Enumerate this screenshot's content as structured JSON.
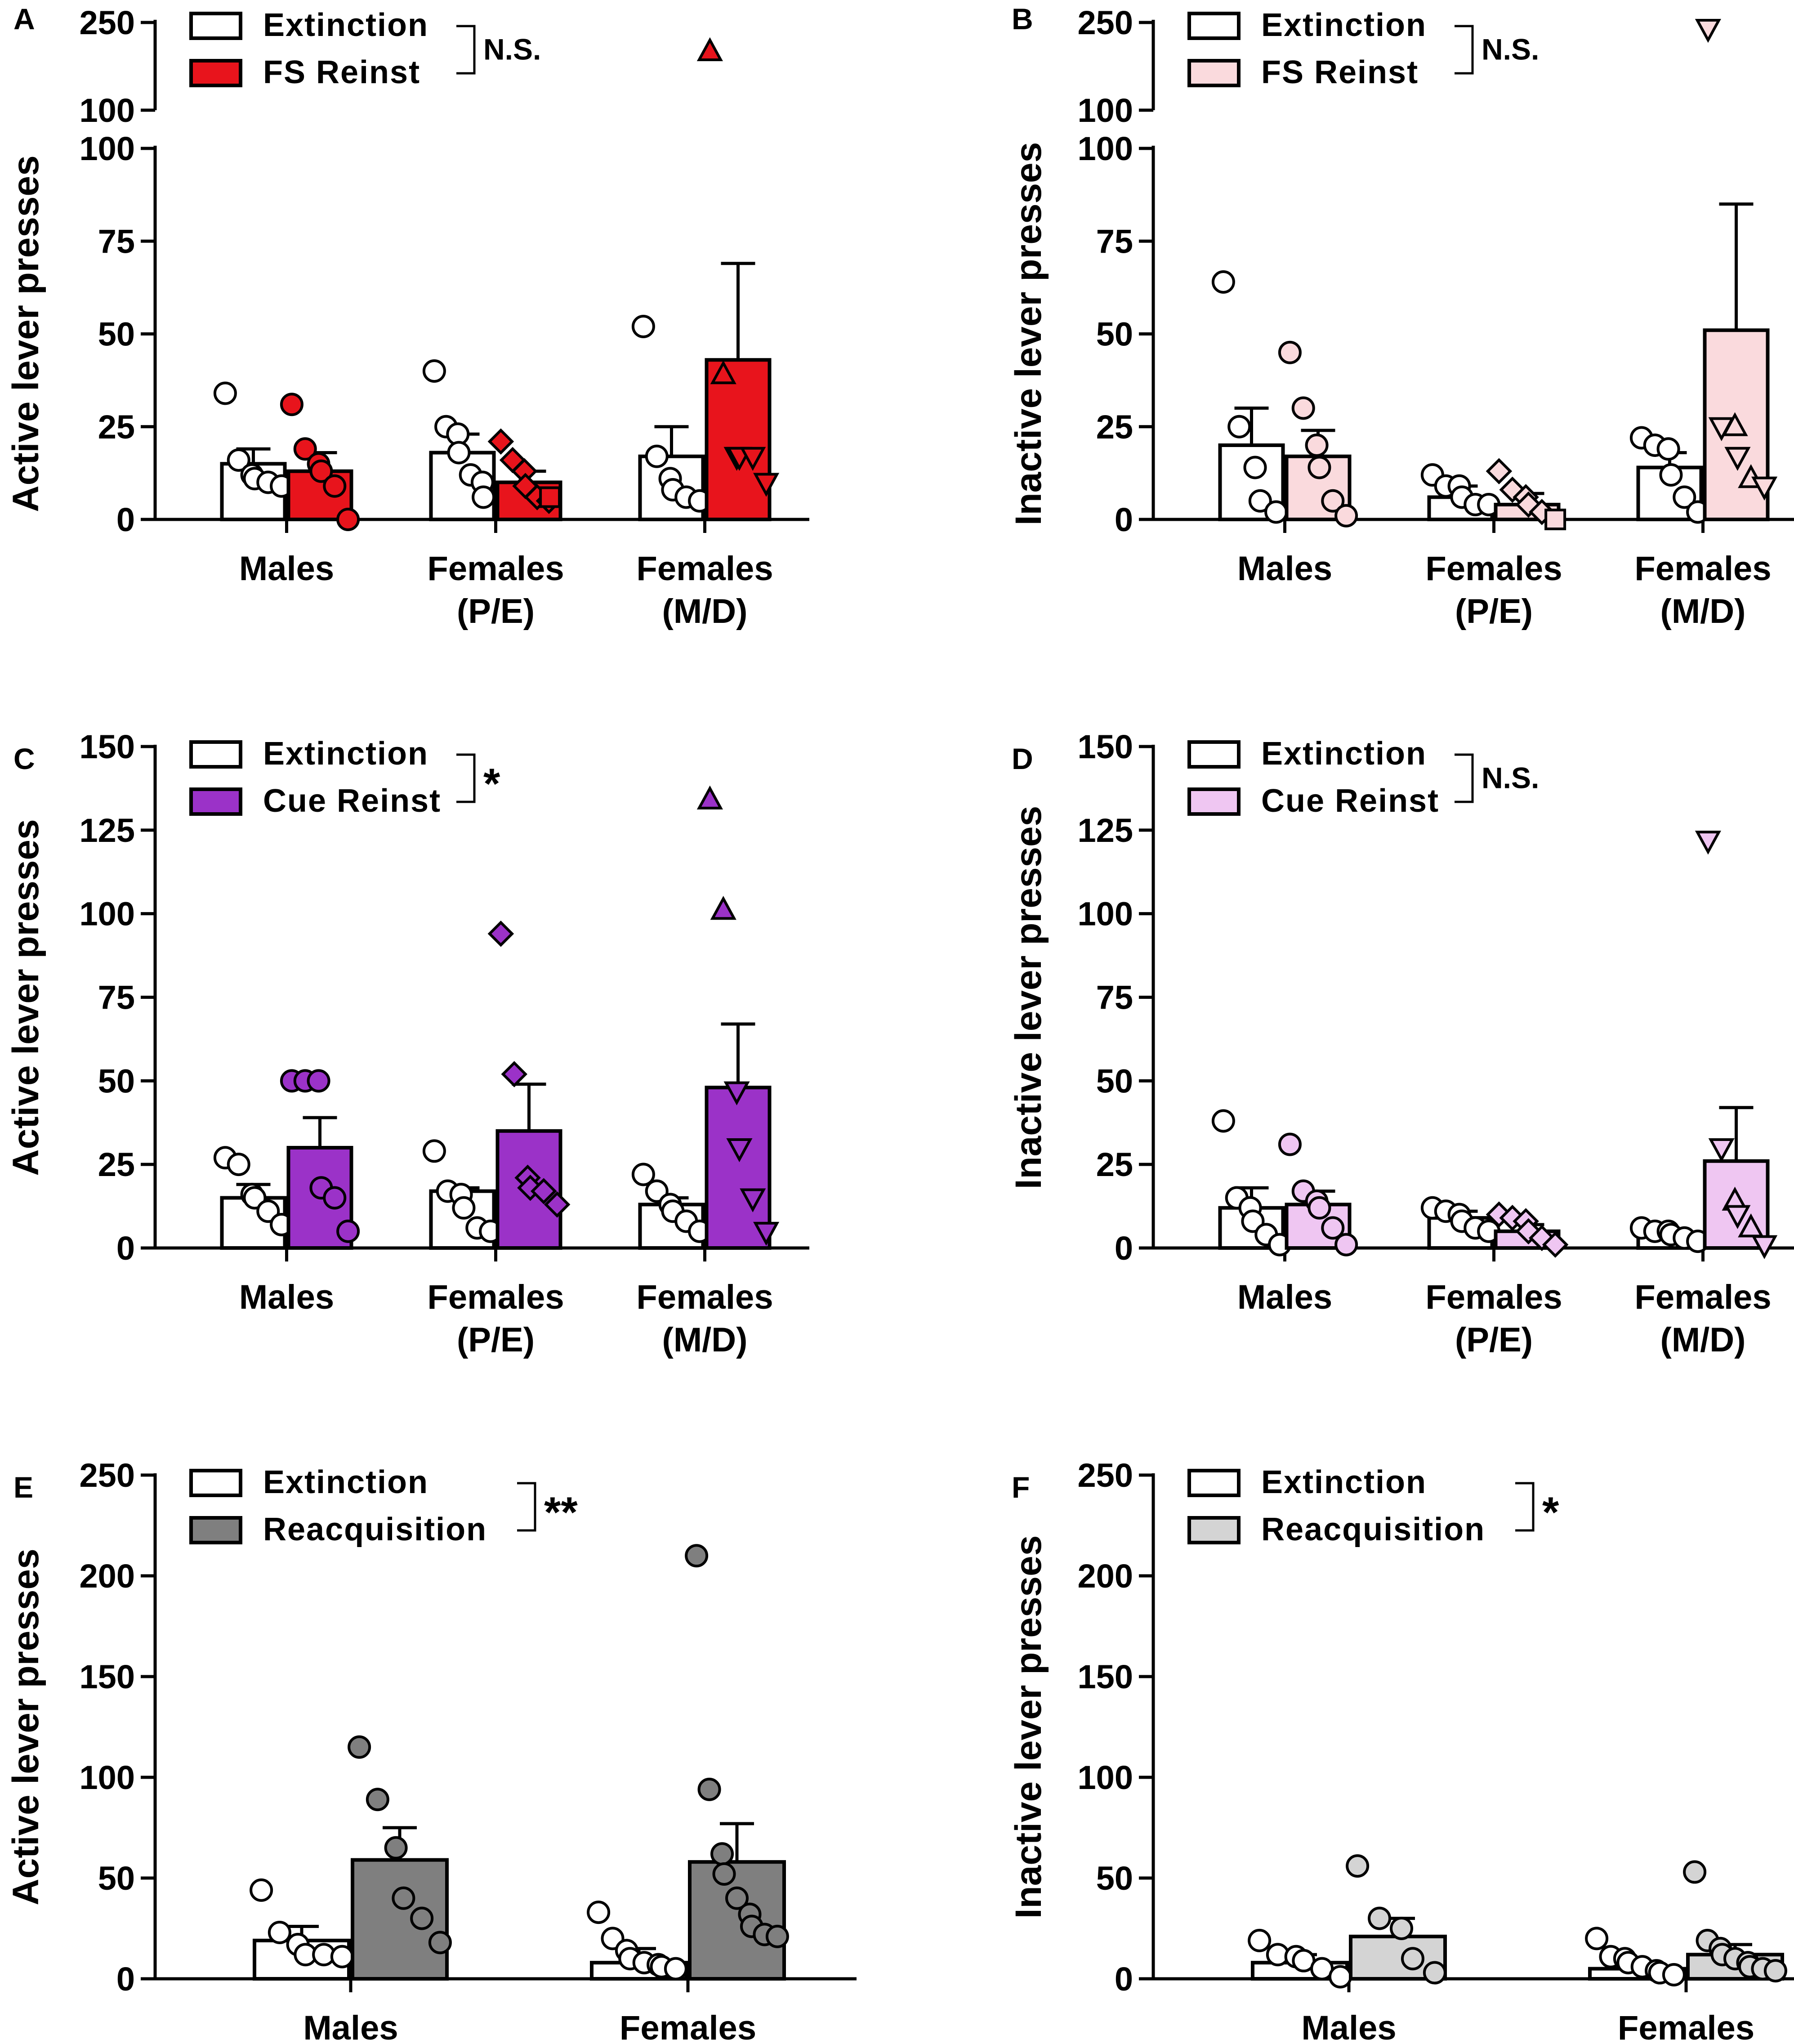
{
  "colors": {
    "fs_active": "#e8141c",
    "fs_inactive": "#fadadd",
    "cue_active": "#9b32c8",
    "cue_inactive": "#efc6f2",
    "reacq_active": "#7f7f7f",
    "reacq_inactive": "#d4d4d4",
    "extinction": "#ffffff",
    "stroke": "#000000"
  },
  "chart_data": [
    {
      "panel": "A",
      "type": "bar",
      "ylabel": "Active lever presses",
      "categories": [
        "Males",
        "Females\n(P/E)",
        "Females\n(M/D)"
      ],
      "yticks_lower": [
        0,
        25,
        50,
        75,
        100
      ],
      "yticks_upper": [
        100,
        250
      ],
      "ylim_lower": [
        0,
        100
      ],
      "ylim_upper": [
        100,
        250
      ],
      "legend": [
        "Extinction",
        "FS Reinst"
      ],
      "significance": "N.S.",
      "series": [
        {
          "name": "Extinction",
          "color": "extinction",
          "values": [
            15,
            18,
            17
          ],
          "errors": [
            4,
            5,
            8
          ],
          "points": [
            [
              34,
              16,
              12,
              11,
              10,
              9
            ],
            [
              40,
              25,
              23,
              18,
              12,
              10,
              6
            ],
            [
              52,
              17,
              11,
              8,
              6,
              5
            ]
          ],
          "markers": [
            "circle",
            "circle",
            "circle"
          ]
        },
        {
          "name": "FS Reinst",
          "color": "fs_active",
          "values": [
            13,
            10,
            43
          ],
          "errors": [
            5,
            3,
            26
          ],
          "points": [
            [
              31,
              19,
              15,
              13,
              9,
              0
            ],
            [
              21,
              16,
              13,
              9,
              6,
              5,
              6
            ],
            [
              200,
              39,
              17,
              17,
              17,
              10
            ]
          ],
          "markers": [
            "circle",
            "diamond",
            "tri_mixed"
          ]
        }
      ]
    },
    {
      "panel": "B",
      "type": "bar",
      "ylabel": "Inactive lever presses",
      "categories": [
        "Males",
        "Females\n(P/E)",
        "Females\n(M/D)"
      ],
      "yticks_lower": [
        0,
        25,
        50,
        75,
        100
      ],
      "yticks_upper": [
        100,
        250
      ],
      "ylim_lower": [
        0,
        100
      ],
      "ylim_upper": [
        100,
        250
      ],
      "legend": [
        "Extinction",
        "FS Reinst"
      ],
      "significance": "N.S.",
      "series": [
        {
          "name": "Extinction",
          "color": "extinction",
          "values": [
            20,
            6,
            14
          ],
          "errors": [
            10,
            3,
            4
          ],
          "points": [
            [
              64,
              25,
              14,
              5,
              2
            ],
            [
              12,
              9,
              9,
              6,
              4,
              4
            ],
            [
              22,
              20,
              19,
              12,
              6,
              2
            ]
          ],
          "markers": [
            "circle",
            "circle",
            "circle"
          ]
        },
        {
          "name": "FS Reinst",
          "color": "fs_inactive",
          "values": [
            17,
            4,
            51
          ],
          "errors": [
            7,
            3,
            34
          ],
          "points": [
            [
              45,
              30,
              20,
              14,
              5,
              1
            ],
            [
              13,
              8,
              6,
              4,
              2,
              0
            ],
            [
              240,
              25,
              25,
              17,
              11,
              9
            ]
          ],
          "markers": [
            "circle",
            "diamond",
            "tri_mixed_b"
          ]
        }
      ]
    },
    {
      "panel": "C",
      "type": "bar",
      "ylabel": "Active lever presses",
      "categories": [
        "Males",
        "Females\n(P/E)",
        "Females\n(M/D)"
      ],
      "yticks": [
        0,
        25,
        50,
        75,
        100,
        125,
        150
      ],
      "ylim": [
        0,
        150
      ],
      "legend": [
        "Extinction",
        "Cue Reinst"
      ],
      "significance": "*",
      "series": [
        {
          "name": "Extinction",
          "color": "extinction",
          "values": [
            15,
            17,
            13
          ],
          "errors": [
            4,
            1,
            2
          ],
          "points": [
            [
              27,
              25,
              16,
              15,
              11,
              7
            ],
            [
              29,
              17,
              16,
              12,
              6,
              5
            ],
            [
              22,
              17,
              13,
              11,
              8,
              5
            ]
          ],
          "markers": [
            "circle",
            "circle",
            "circle"
          ]
        },
        {
          "name": "Cue Reinst",
          "color": "cue_active",
          "values": [
            30,
            35,
            48
          ],
          "errors": [
            9,
            14,
            19
          ],
          "points": [
            [
              50,
              50,
              50,
              18,
              15,
              5
            ],
            [
              94,
              52,
              21,
              18,
              17,
              13
            ],
            [
              134,
              101,
              47,
              30,
              15,
              5
            ]
          ],
          "markers": [
            "circle",
            "diamond",
            "tri_mixed"
          ]
        }
      ]
    },
    {
      "panel": "D",
      "type": "bar",
      "ylabel": "Inactive lever presses",
      "categories": [
        "Males",
        "Females\n(P/E)",
        "Females\n(M/D)"
      ],
      "yticks": [
        0,
        25,
        50,
        75,
        100,
        125,
        150
      ],
      "ylim": [
        0,
        150
      ],
      "legend": [
        "Extinction",
        "Cue Reinst"
      ],
      "significance": "N.S.",
      "series": [
        {
          "name": "Extinction",
          "color": "extinction",
          "values": [
            12,
            9,
            4
          ],
          "errors": [
            6,
            2,
            1
          ],
          "points": [
            [
              38,
              15,
              12,
              8,
              4,
              1
            ],
            [
              12,
              11,
              10,
              8,
              6,
              5
            ],
            [
              6,
              5,
              5,
              4,
              3,
              2
            ]
          ],
          "markers": [
            "circle",
            "circle",
            "circle"
          ]
        },
        {
          "name": "Cue Reinst",
          "color": "cue_inactive",
          "values": [
            13,
            5,
            26
          ],
          "errors": [
            4,
            2,
            16
          ],
          "points": [
            [
              31,
              17,
              14,
              12,
              6,
              1
            ],
            [
              10,
              9,
              8,
              5,
              3,
              1
            ],
            [
              122,
              30,
              14,
              10,
              6,
              1
            ]
          ],
          "markers": [
            "circle",
            "diamond",
            "tri_mixed_b"
          ]
        }
      ]
    },
    {
      "panel": "E",
      "type": "bar",
      "ylabel": "Active lever presses",
      "categories": [
        "Males",
        "Females"
      ],
      "yticks": [
        0,
        50,
        100,
        150,
        200,
        250
      ],
      "ylim": [
        0,
        250
      ],
      "legend": [
        "Extinction",
        "Reacquisition"
      ],
      "significance": "**",
      "series": [
        {
          "name": "Extinction",
          "color": "extinction",
          "values": [
            19,
            8
          ],
          "errors": [
            7,
            7
          ],
          "points": [
            [
              44,
              23,
              17,
              12,
              12,
              11
            ],
            [
              33,
              20,
              14,
              10,
              8,
              7,
              6,
              5
            ]
          ],
          "markers": [
            "circle",
            "circle"
          ]
        },
        {
          "name": "Reacquisition",
          "color": "reacq_active",
          "values": [
            59,
            58
          ],
          "errors": [
            16,
            19
          ],
          "points": [
            [
              115,
              89,
              65,
              40,
              30,
              18
            ],
            [
              210,
              94,
              62,
              52,
              40,
              32,
              26,
              22,
              21
            ]
          ],
          "markers": [
            "circle",
            "circle"
          ]
        }
      ]
    },
    {
      "panel": "F",
      "type": "bar",
      "ylabel": "Inactive lever presses",
      "categories": [
        "Males",
        "Females"
      ],
      "yticks": [
        0,
        50,
        100,
        150,
        200,
        250
      ],
      "ylim": [
        0,
        250
      ],
      "legend": [
        "Extinction",
        "Reacquisition"
      ],
      "significance": "*",
      "series": [
        {
          "name": "Extinction",
          "color": "extinction",
          "values": [
            8,
            5
          ],
          "errors": [
            4,
            3
          ],
          "points": [
            [
              19,
              12,
              11,
              9,
              5,
              1
            ],
            [
              20,
              11,
              10,
              8,
              6,
              4,
              3,
              2
            ]
          ],
          "markers": [
            "circle",
            "circle"
          ]
        },
        {
          "name": "Reacquisition",
          "color": "reacq_inactive",
          "values": [
            21,
            12
          ],
          "errors": [
            9,
            5
          ],
          "points": [
            [
              56,
              30,
              25,
              10,
              3
            ],
            [
              53,
              19,
              15,
              12,
              10,
              8,
              6,
              5,
              4
            ]
          ],
          "markers": [
            "circle",
            "circle"
          ]
        }
      ]
    }
  ]
}
